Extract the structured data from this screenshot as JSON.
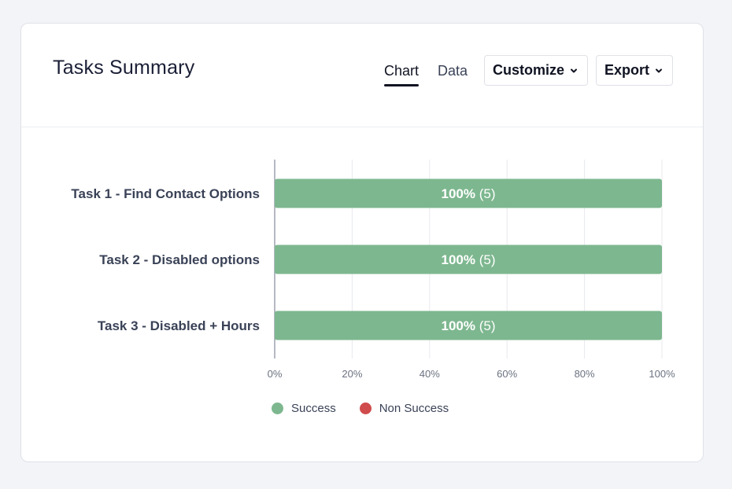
{
  "header": {
    "title": "Tasks Summary",
    "tabs": [
      {
        "label": "Chart",
        "active": true
      },
      {
        "label": "Data",
        "active": false
      }
    ],
    "customize_label": "Customize",
    "export_label": "Export"
  },
  "colors": {
    "success": "#7db78f",
    "non_success": "#d04b4b",
    "grid": "#e8e9ee",
    "axis": "#9da2ad",
    "label": "#3a4257"
  },
  "icons": {
    "dropdown": "chevron-down-icon"
  },
  "chart_data": {
    "type": "bar",
    "orientation": "horizontal",
    "stacked": true,
    "categories": [
      "Task 1 - Find Contact Options",
      "Task 2 - Disabled options",
      "Task 3 - Disabled + Hours"
    ],
    "series": [
      {
        "name": "Success",
        "values": [
          100,
          100,
          100
        ],
        "counts": [
          5,
          5,
          5
        ],
        "color": "#7db78f"
      },
      {
        "name": "Non Success",
        "values": [
          0,
          0,
          0
        ],
        "counts": [
          0,
          0,
          0
        ],
        "color": "#d04b4b"
      }
    ],
    "data_labels": [
      {
        "percent": "100%",
        "count": "(5)"
      },
      {
        "percent": "100%",
        "count": "(5)"
      },
      {
        "percent": "100%",
        "count": "(5)"
      }
    ],
    "xlim": [
      0,
      100
    ],
    "xticks": [
      "0%",
      "20%",
      "40%",
      "60%",
      "80%",
      "100%"
    ],
    "grid": true,
    "legend_position": "bottom"
  }
}
